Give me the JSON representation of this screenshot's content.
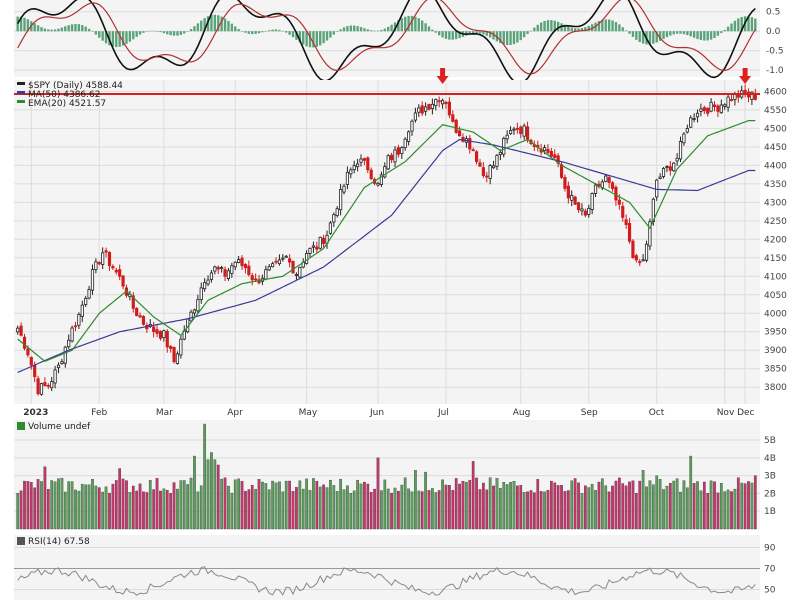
{
  "chart_data": {
    "type": "candlestick",
    "macd_panel": {
      "y_ticks": [
        "0.5",
        "0.0",
        "-0.5",
        "-1.0"
      ],
      "ylim": [
        -1.15,
        0.75
      ]
    },
    "price_panel": {
      "legend": [
        {
          "label": "$SPY (Daily) 4588.44",
          "color": "#222222"
        },
        {
          "label": "MA(50) 4386.62",
          "color": "#3a3a9a"
        },
        {
          "label": "EMA(20) 4521.57",
          "color": "#2e8b2e"
        }
      ],
      "y_ticks": [
        3800,
        3850,
        3900,
        3950,
        4000,
        4050,
        4100,
        4150,
        4200,
        4250,
        4300,
        4350,
        4400,
        4450,
        4500,
        4550,
        4600
      ],
      "ylim": [
        3760,
        4620
      ],
      "x_labels": [
        "2023",
        "Feb",
        "Mar",
        "Apr",
        "May",
        "Jun",
        "Jul",
        "Aug",
        "Sep",
        "Oct",
        "Nov",
        "Dec"
      ],
      "resistance_level": 4593,
      "resistance_color": "#d42020",
      "arrow_color": "#e02020",
      "anchors": [
        [
          0,
          3960
        ],
        [
          3,
          3895
        ],
        [
          6,
          3795
        ],
        [
          9,
          3805
        ],
        [
          12,
          3855
        ],
        [
          15,
          3935
        ],
        [
          18,
          3995
        ],
        [
          22,
          4105
        ],
        [
          25,
          4165
        ],
        [
          28,
          4125
        ],
        [
          31,
          4080
        ],
        [
          34,
          4015
        ],
        [
          37,
          3975
        ],
        [
          40,
          3955
        ],
        [
          43,
          3940
        ],
        [
          46,
          3870
        ],
        [
          49,
          3955
        ],
        [
          52,
          4020
        ],
        [
          55,
          4095
        ],
        [
          58,
          4120
        ],
        [
          61,
          4105
        ],
        [
          64,
          4140
        ],
        [
          67,
          4125
        ],
        [
          70,
          4085
        ],
        [
          73,
          4110
        ],
        [
          76,
          4125
        ],
        [
          79,
          4150
        ],
        [
          82,
          4110
        ],
        [
          85,
          4165
        ],
        [
          88,
          4180
        ],
        [
          91,
          4215
        ],
        [
          94,
          4295
        ],
        [
          97,
          4370
        ],
        [
          100,
          4415
        ],
        [
          103,
          4395
        ],
        [
          106,
          4345
        ],
        [
          109,
          4415
        ],
        [
          112,
          4440
        ],
        [
          115,
          4505
        ],
        [
          118,
          4545
        ],
        [
          121,
          4565
        ],
        [
          124,
          4585
        ],
        [
          126,
          4575
        ],
        [
          128,
          4510
        ],
        [
          131,
          4480
        ],
        [
          134,
          4445
        ],
        [
          137,
          4375
        ],
        [
          140,
          4400
        ],
        [
          143,
          4460
        ],
        [
          146,
          4505
        ],
        [
          149,
          4495
        ],
        [
          152,
          4460
        ],
        [
          155,
          4445
        ],
        [
          158,
          4420
        ],
        [
          161,
          4340
        ],
        [
          164,
          4290
        ],
        [
          167,
          4260
        ],
        [
          170,
          4335
        ],
        [
          173,
          4365
        ],
        [
          176,
          4305
        ],
        [
          179,
          4230
        ],
        [
          182,
          4130
        ],
        [
          184,
          4140
        ],
        [
          186,
          4240
        ],
        [
          188,
          4360
        ],
        [
          191,
          4390
        ],
        [
          194,
          4420
        ],
        [
          197,
          4510
        ],
        [
          200,
          4550
        ],
        [
          203,
          4555
        ],
        [
          206,
          4560
        ],
        [
          209,
          4580
        ],
        [
          212,
          4590
        ],
        [
          215,
          4588
        ]
      ],
      "ma50_anchors": [
        [
          0,
          3840
        ],
        [
          15,
          3900
        ],
        [
          30,
          3950
        ],
        [
          50,
          3985
        ],
        [
          70,
          4035
        ],
        [
          90,
          4125
        ],
        [
          110,
          4265
        ],
        [
          125,
          4440
        ],
        [
          130,
          4470
        ],
        [
          140,
          4455
        ],
        [
          160,
          4410
        ],
        [
          175,
          4370
        ],
        [
          188,
          4335
        ],
        [
          200,
          4332
        ],
        [
          215,
          4386
        ]
      ],
      "ema20_anchors": [
        [
          0,
          3930
        ],
        [
          8,
          3870
        ],
        [
          16,
          3900
        ],
        [
          24,
          4000
        ],
        [
          32,
          4060
        ],
        [
          40,
          3990
        ],
        [
          48,
          3940
        ],
        [
          56,
          4035
        ],
        [
          66,
          4080
        ],
        [
          78,
          4100
        ],
        [
          90,
          4175
        ],
        [
          102,
          4340
        ],
        [
          114,
          4410
        ],
        [
          125,
          4510
        ],
        [
          134,
          4490
        ],
        [
          142,
          4440
        ],
        [
          150,
          4470
        ],
        [
          160,
          4400
        ],
        [
          172,
          4340
        ],
        [
          180,
          4300
        ],
        [
          186,
          4230
        ],
        [
          194,
          4390
        ],
        [
          203,
          4480
        ],
        [
          215,
          4521
        ]
      ]
    },
    "volume_panel": {
      "label": "Volume undef",
      "y_ticks": [
        "5B",
        "4B",
        "3B",
        "2B",
        "1B"
      ],
      "ylim": [
        0,
        5.9
      ],
      "spikes": [
        [
          8,
          3.5
        ],
        [
          30,
          3.4
        ],
        [
          52,
          4.1
        ],
        [
          55,
          5.9
        ],
        [
          56,
          3.9
        ],
        [
          57,
          4.3
        ],
        [
          58,
          3.9
        ],
        [
          59,
          3.6
        ],
        [
          106,
          4.0
        ],
        [
          117,
          3.3
        ],
        [
          120,
          3.2
        ],
        [
          134,
          3.8
        ],
        [
          184,
          3.3
        ],
        [
          188,
          3.0
        ],
        [
          198,
          4.1
        ],
        [
          217,
          3.0
        ]
      ]
    },
    "rsi_panel": {
      "label": "RSI(14) 67.58",
      "y_ticks": [
        "90",
        "70",
        "50"
      ],
      "ylim": [
        40,
        100
      ]
    }
  }
}
